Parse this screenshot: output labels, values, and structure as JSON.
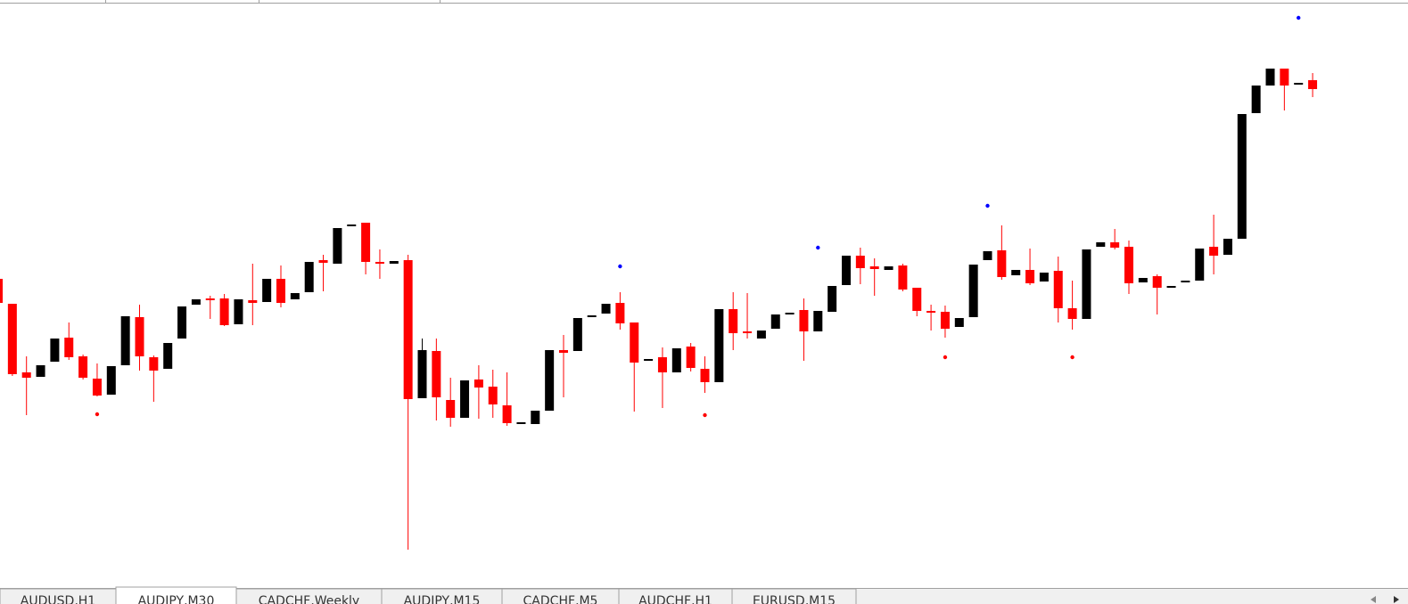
{
  "chart_data": {
    "type": "candlestick",
    "ylim": [
      0,
      660
    ],
    "up_color": "#000000",
    "down_color": "#ff0000",
    "fractal_up_color": "#0000ff",
    "fractal_down_color": "#ff0000",
    "open": [
      347,
      319,
      242,
      237,
      254,
      281,
      260,
      235,
      217,
      250,
      304,
      259,
      246,
      280,
      318,
      325,
      325,
      296,
      323,
      321,
      347,
      324,
      332,
      368,
      364,
      406,
      410,
      366,
      364,
      368,
      213,
      266,
      211,
      191,
      234,
      226,
      205,
      185,
      184,
      199,
      267,
      266,
      304,
      308,
      320,
      298,
      255,
      259,
      242,
      271,
      246,
      231,
      313,
      288,
      280,
      291,
      308,
      312,
      288,
      310,
      340,
      373,
      361,
      357,
      362,
      337,
      311,
      310,
      293,
      304,
      368,
      379,
      351,
      357,
      344,
      356,
      314,
      302,
      383,
      388,
      383,
      343,
      350,
      338,
      344,
      345,
      383,
      374,
      392,
      533,
      564,
      583,
      566,
      570
    ],
    "high": [
      347,
      319,
      260,
      250,
      280,
      298,
      262,
      252,
      249,
      305,
      318,
      261,
      275,
      316,
      324,
      328,
      330,
      324,
      364,
      347,
      362,
      331,
      366,
      374,
      404,
      408,
      410,
      380,
      367,
      374,
      280,
      280,
      236,
      233,
      250,
      245,
      242,
      186,
      199,
      267,
      284,
      303,
      306,
      319,
      332,
      298,
      257,
      270,
      269,
      275,
      260,
      313,
      332,
      331,
      289,
      307,
      309,
      325,
      311,
      339,
      373,
      382,
      370,
      361,
      364,
      337,
      318,
      317,
      303,
      363,
      378,
      407,
      357,
      381,
      354,
      372,
      345,
      380,
      388,
      403,
      390,
      348,
      352,
      339,
      345,
      381,
      419,
      392,
      532,
      564,
      583,
      583,
      567,
      578
    ],
    "low": [
      320,
      238,
      194,
      237,
      254,
      256,
      234,
      215,
      217,
      250,
      244,
      209,
      246,
      280,
      318,
      302,
      294,
      296,
      295,
      321,
      315,
      324,
      332,
      333,
      364,
      406,
      352,
      347,
      364,
      43,
      213,
      188,
      181,
      191,
      190,
      191,
      182,
      185,
      184,
      199,
      214,
      266,
      304,
      308,
      290,
      198,
      255,
      202,
      242,
      243,
      219,
      231,
      267,
      280,
      280,
      291,
      308,
      255,
      288,
      310,
      340,
      341,
      328,
      357,
      333,
      305,
      289,
      281,
      293,
      304,
      368,
      346,
      351,
      340,
      344,
      298,
      290,
      302,
      383,
      380,
      330,
      343,
      307,
      338,
      344,
      345,
      352,
      374,
      392,
      533,
      564,
      536,
      566,
      551
    ],
    "close": [
      320,
      240,
      236,
      250,
      280,
      259,
      236,
      216,
      249,
      305,
      260,
      244,
      275,
      316,
      324,
      323,
      295,
      324,
      320,
      347,
      320,
      331,
      366,
      365,
      404,
      408,
      366,
      364,
      367,
      212,
      267,
      214,
      191,
      233,
      225,
      206,
      185,
      186,
      199,
      267,
      264,
      303,
      306,
      319,
      297,
      253,
      257,
      242,
      269,
      247,
      231,
      313,
      286,
      286,
      289,
      307,
      309,
      288,
      311,
      339,
      373,
      359,
      358,
      361,
      335,
      311,
      309,
      291,
      303,
      363,
      378,
      349,
      357,
      342,
      354,
      314,
      302,
      380,
      388,
      382,
      342,
      348,
      337,
      339,
      345,
      381,
      373,
      392,
      532,
      564,
      583,
      564,
      567,
      560
    ],
    "fractals_up": [
      null,
      null,
      null,
      null,
      null,
      null,
      null,
      null,
      null,
      null,
      null,
      null,
      null,
      null,
      null,
      null,
      null,
      null,
      null,
      null,
      null,
      null,
      null,
      null,
      null,
      null,
      null,
      null,
      null,
      null,
      null,
      null,
      null,
      null,
      null,
      null,
      null,
      null,
      null,
      null,
      null,
      null,
      null,
      null,
      361,
      null,
      null,
      null,
      null,
      null,
      null,
      null,
      null,
      null,
      null,
      null,
      null,
      null,
      382,
      null,
      null,
      null,
      null,
      null,
      null,
      null,
      null,
      null,
      null,
      null,
      429,
      null,
      null,
      null,
      null,
      null,
      null,
      null,
      null,
      null,
      null,
      null,
      null,
      null,
      null,
      null,
      null,
      null,
      null,
      null,
      null,
      null,
      640,
      null
    ],
    "fractals_down": [
      null,
      null,
      null,
      null,
      null,
      null,
      null,
      195,
      null,
      null,
      null,
      null,
      null,
      null,
      null,
      null,
      null,
      null,
      null,
      null,
      null,
      null,
      null,
      null,
      null,
      null,
      null,
      null,
      null,
      null,
      null,
      null,
      null,
      null,
      null,
      null,
      null,
      null,
      null,
      null,
      null,
      null,
      null,
      null,
      null,
      null,
      null,
      null,
      null,
      null,
      194,
      null,
      null,
      null,
      null,
      null,
      null,
      null,
      null,
      null,
      null,
      null,
      null,
      null,
      null,
      null,
      null,
      259,
      null,
      null,
      null,
      null,
      null,
      null,
      null,
      null,
      259,
      null,
      null,
      null,
      null,
      null,
      null,
      null,
      null,
      null,
      null,
      null,
      null,
      null,
      null,
      null,
      null,
      null
    ]
  },
  "tabs": [
    "AUDUSD,H1",
    "AUDJPY,M30",
    "CADCHF,Weekly",
    "AUDJPY,M15",
    "CADCHF,M5",
    "AUDCHF,H1",
    "EURUSD,M15"
  ],
  "active_tab": 1
}
